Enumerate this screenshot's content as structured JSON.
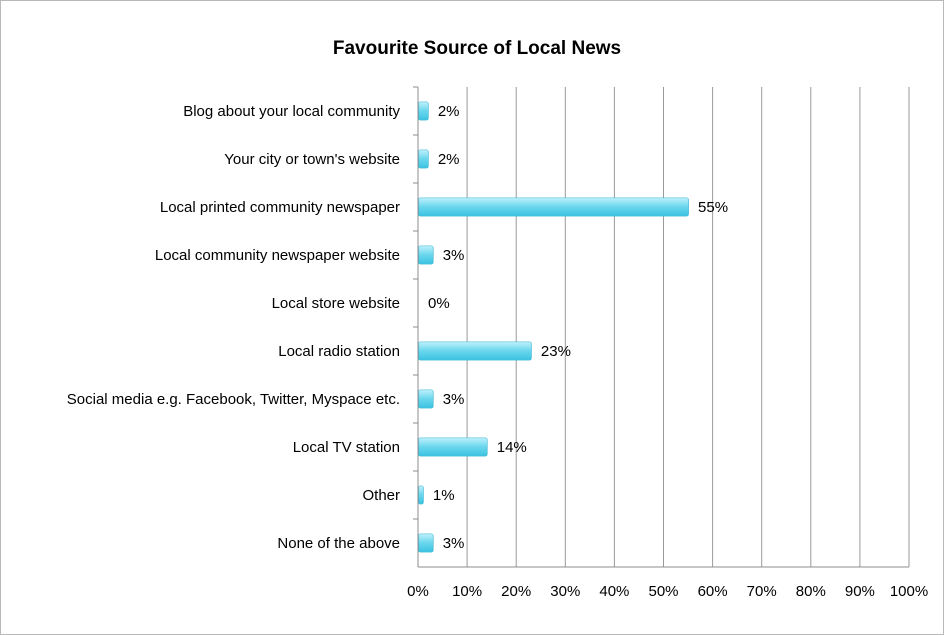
{
  "chart_data": {
    "type": "bar",
    "orientation": "horizontal",
    "title": "Favourite Source of Local News",
    "categories": [
      "Blog about your local community",
      "Your city or town's website",
      "Local printed community newspaper",
      "Local community newspaper website",
      "Local store website",
      "Local radio station",
      "Social media e.g. Facebook, Twitter, Myspace etc.",
      "Local TV station",
      "Other",
      "None of the above"
    ],
    "values": [
      2,
      2,
      55,
      3,
      0,
      23,
      3,
      14,
      1,
      3
    ],
    "data_labels": [
      "2%",
      "2%",
      "55%",
      "3%",
      "0%",
      "23%",
      "3%",
      "14%",
      "1%",
      "3%"
    ],
    "xlim": [
      0,
      100
    ],
    "x_ticks": [
      0,
      10,
      20,
      30,
      40,
      50,
      60,
      70,
      80,
      90,
      100
    ],
    "x_tick_labels": [
      "0%",
      "10%",
      "20%",
      "30%",
      "40%",
      "50%",
      "60%",
      "70%",
      "80%",
      "90%",
      "100%"
    ],
    "xlabel": "",
    "ylabel": "",
    "grid": "vertical",
    "legend": "none",
    "colors": {
      "bar_light": "#bff0fb",
      "bar_mid": "#6fd8ef",
      "bar_dark": "#3cc3e0",
      "bar_edge": "#35b4d2",
      "grid": "#9a9a9a",
      "axis": "#8c8c8c",
      "frame": "#b8b8b8"
    }
  }
}
